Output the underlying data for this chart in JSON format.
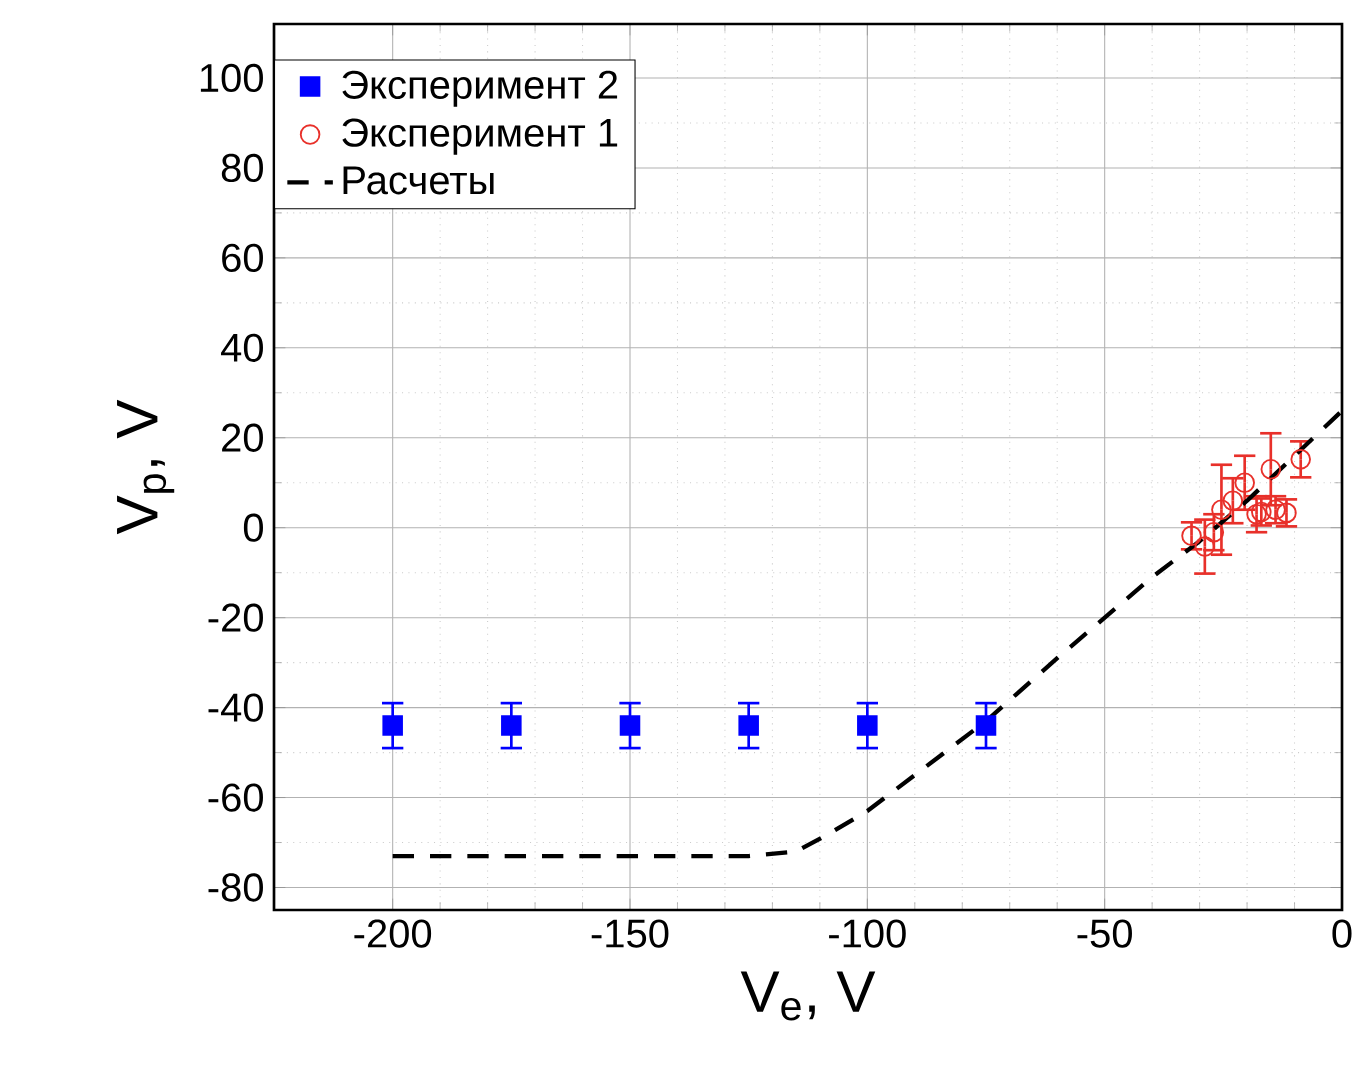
{
  "chart_data": {
    "type": "scatter",
    "xlabel": "V$_{e}$, V",
    "ylabel": "V$_{p}$, V",
    "xlim": [
      -225,
      0
    ],
    "ylim": [
      -85,
      112
    ],
    "xticks": [
      -200,
      -150,
      -100,
      -50,
      0
    ],
    "yticks": [
      -80,
      -60,
      -40,
      -20,
      0,
      20,
      40,
      60,
      80,
      100
    ],
    "grid": true,
    "legend": "top left",
    "series": [
      {
        "name": "Эксперимент 2",
        "color": "#0000ff",
        "marker": "square",
        "x": [
          -200,
          -175,
          -150,
          -125,
          -100,
          -75
        ],
        "values": [
          -44,
          -44,
          -44,
          -44,
          -44,
          -44
        ],
        "errors": [
          5,
          5,
          5,
          5,
          5,
          5
        ]
      },
      {
        "name": "Эксперимент 1",
        "color": "#e8302a",
        "marker": "circle",
        "x": [
          -31.7,
          -28.9,
          -27,
          -25.4,
          -23,
          -20.5,
          -18,
          -17,
          -15,
          -14,
          -11.7,
          -8.7
        ],
        "values": [
          -1.8,
          -4.2,
          -1,
          4,
          6,
          10,
          3,
          3.5,
          13,
          4,
          3.3,
          15.2
        ],
        "errors": [
          3,
          6,
          4,
          10,
          5,
          6,
          4,
          3,
          8,
          3,
          3,
          4
        ]
      },
      {
        "name": "Расчеты",
        "type": "line",
        "color": "#000000",
        "marker": "none",
        "line_style": "dashed",
        "x": [
          -200,
          -125,
          -115,
          -108,
          -100,
          -90,
          -75,
          -60,
          -50,
          -40,
          -30,
          -20,
          -10,
          0
        ],
        "values": [
          -73,
          -73,
          -72,
          -68,
          -63,
          -55,
          -43,
          -29,
          -20,
          -11,
          -3,
          6,
          16,
          26
        ]
      }
    ]
  }
}
